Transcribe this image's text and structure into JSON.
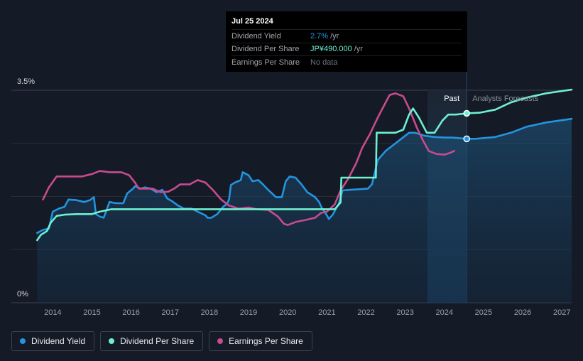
{
  "tooltip": {
    "date": "Jul 25 2024",
    "rows": [
      {
        "label": "Dividend Yield",
        "value": "2.7%",
        "unit": "/yr",
        "color": "#2394df"
      },
      {
        "label": "Dividend Per Share",
        "value": "JP¥490.000",
        "unit": "/yr",
        "color": "#6ff0d2"
      },
      {
        "label": "Earnings Per Share",
        "value": "No data",
        "unit": "",
        "color": "#6b7280"
      }
    ]
  },
  "legend": [
    {
      "label": "Dividend Yield",
      "color": "#2394df"
    },
    {
      "label": "Dividend Per Share",
      "color": "#6ff0d2"
    },
    {
      "label": "Earnings Per Share",
      "color": "#c84b8e"
    }
  ],
  "chart_data": {
    "type": "line",
    "x_range": [
      2013.45,
      2027.25
    ],
    "ylim": [
      0,
      3.5
    ],
    "y_ticks": [
      "3.5%",
      "0%"
    ],
    "x_ticks": [
      "2014",
      "2015",
      "2016",
      "2017",
      "2018",
      "2019",
      "2020",
      "2021",
      "2022",
      "2023",
      "2024",
      "2025",
      "2026",
      "2027"
    ],
    "past_label": "Past",
    "forecast_label": "Analysts Forecasts",
    "past_start": 2023.57,
    "forecast_start": 2024.57,
    "grid": true,
    "series": [
      {
        "name": "Dividend Yield",
        "color": "#2394df",
        "area": true,
        "points": [
          [
            2013.6,
            1.15
          ],
          [
            2013.75,
            1.2
          ],
          [
            2013.9,
            1.22
          ],
          [
            2014.0,
            1.5
          ],
          [
            2014.15,
            1.55
          ],
          [
            2014.3,
            1.58
          ],
          [
            2014.4,
            1.7
          ],
          [
            2014.6,
            1.69
          ],
          [
            2014.8,
            1.66
          ],
          [
            2014.95,
            1.69
          ],
          [
            2015.05,
            1.74
          ],
          [
            2015.1,
            1.46
          ],
          [
            2015.2,
            1.42
          ],
          [
            2015.3,
            1.4
          ],
          [
            2015.45,
            1.66
          ],
          [
            2015.6,
            1.64
          ],
          [
            2015.8,
            1.64
          ],
          [
            2015.9,
            1.8
          ],
          [
            2016.05,
            1.88
          ],
          [
            2016.1,
            1.92
          ],
          [
            2016.25,
            1.88
          ],
          [
            2016.35,
            1.9
          ],
          [
            2016.5,
            1.88
          ],
          [
            2016.65,
            1.82
          ],
          [
            2016.8,
            1.86
          ],
          [
            2016.92,
            1.72
          ],
          [
            2017.05,
            1.67
          ],
          [
            2017.2,
            1.6
          ],
          [
            2017.35,
            1.55
          ],
          [
            2017.55,
            1.55
          ],
          [
            2017.7,
            1.5
          ],
          [
            2017.9,
            1.44
          ],
          [
            2017.95,
            1.4
          ],
          [
            2018.05,
            1.4
          ],
          [
            2018.2,
            1.46
          ],
          [
            2018.35,
            1.58
          ],
          [
            2018.45,
            1.63
          ],
          [
            2018.5,
            1.7
          ],
          [
            2018.55,
            1.94
          ],
          [
            2018.65,
            1.98
          ],
          [
            2018.8,
            2.02
          ],
          [
            2018.85,
            2.15
          ],
          [
            2019.0,
            2.1
          ],
          [
            2019.1,
            2.0
          ],
          [
            2019.25,
            2.02
          ],
          [
            2019.35,
            1.96
          ],
          [
            2019.5,
            1.86
          ],
          [
            2019.7,
            1.74
          ],
          [
            2019.85,
            1.74
          ],
          [
            2019.95,
            2.0
          ],
          [
            2020.05,
            2.08
          ],
          [
            2020.2,
            2.06
          ],
          [
            2020.35,
            1.95
          ],
          [
            2020.5,
            1.82
          ],
          [
            2020.7,
            1.74
          ],
          [
            2020.8,
            1.66
          ],
          [
            2020.87,
            1.56
          ],
          [
            2020.92,
            1.52
          ],
          [
            2021.0,
            1.44
          ],
          [
            2021.05,
            1.38
          ],
          [
            2021.15,
            1.45
          ],
          [
            2021.3,
            1.63
          ],
          [
            2021.4,
            1.85
          ],
          [
            2021.6,
            1.86
          ],
          [
            2021.85,
            1.87
          ],
          [
            2022.05,
            1.88
          ],
          [
            2022.15,
            1.95
          ],
          [
            2022.3,
            2.35
          ],
          [
            2022.5,
            2.5
          ],
          [
            2022.7,
            2.6
          ],
          [
            2022.9,
            2.7
          ],
          [
            2023.1,
            2.8
          ],
          [
            2023.25,
            2.8
          ],
          [
            2023.5,
            2.75
          ],
          [
            2023.75,
            2.73
          ],
          [
            2024.0,
            2.72
          ],
          [
            2024.2,
            2.72
          ],
          [
            2024.57,
            2.7
          ],
          [
            2024.8,
            2.7
          ],
          [
            2025.3,
            2.73
          ],
          [
            2025.7,
            2.8
          ],
          [
            2026.1,
            2.9
          ],
          [
            2026.6,
            2.97
          ],
          [
            2027.25,
            3.03
          ]
        ]
      },
      {
        "name": "Dividend Per Share",
        "color": "#6ff0d2",
        "area": false,
        "points": [
          [
            2013.6,
            1.03
          ],
          [
            2013.7,
            1.12
          ],
          [
            2013.85,
            1.18
          ],
          [
            2013.95,
            1.32
          ],
          [
            2014.1,
            1.43
          ],
          [
            2014.3,
            1.45
          ],
          [
            2014.6,
            1.46
          ],
          [
            2015.0,
            1.46
          ],
          [
            2015.2,
            1.5
          ],
          [
            2015.5,
            1.54
          ],
          [
            2016.0,
            1.54
          ],
          [
            2016.5,
            1.54
          ],
          [
            2017.0,
            1.54
          ],
          [
            2017.5,
            1.54
          ],
          [
            2018.0,
            1.54
          ],
          [
            2018.5,
            1.54
          ],
          [
            2019.0,
            1.54
          ],
          [
            2019.5,
            1.54
          ],
          [
            2020.0,
            1.54
          ],
          [
            2020.5,
            1.54
          ],
          [
            2021.0,
            1.54
          ],
          [
            2021.2,
            1.54
          ],
          [
            2021.35,
            1.65
          ],
          [
            2021.37,
            2.06
          ],
          [
            2021.6,
            2.06
          ],
          [
            2022.1,
            2.06
          ],
          [
            2022.25,
            2.06
          ],
          [
            2022.27,
            2.8
          ],
          [
            2022.5,
            2.8
          ],
          [
            2022.75,
            2.8
          ],
          [
            2022.95,
            2.85
          ],
          [
            2023.1,
            3.1
          ],
          [
            2023.2,
            3.2
          ],
          [
            2023.35,
            3.05
          ],
          [
            2023.55,
            2.8
          ],
          [
            2023.75,
            2.8
          ],
          [
            2023.95,
            3.0
          ],
          [
            2024.1,
            3.1
          ],
          [
            2024.3,
            3.1
          ],
          [
            2024.57,
            3.12
          ],
          [
            2024.9,
            3.13
          ],
          [
            2025.3,
            3.18
          ],
          [
            2025.7,
            3.3
          ],
          [
            2026.1,
            3.38
          ],
          [
            2026.6,
            3.45
          ],
          [
            2027.25,
            3.51
          ]
        ]
      },
      {
        "name": "Earnings Per Share",
        "color": "#c84b8e",
        "area": false,
        "points": [
          [
            2013.75,
            1.7
          ],
          [
            2013.9,
            1.9
          ],
          [
            2014.1,
            2.08
          ],
          [
            2014.4,
            2.08
          ],
          [
            2014.75,
            2.08
          ],
          [
            2015.0,
            2.12
          ],
          [
            2015.2,
            2.17
          ],
          [
            2015.45,
            2.15
          ],
          [
            2015.75,
            2.15
          ],
          [
            2015.95,
            2.1
          ],
          [
            2016.1,
            1.98
          ],
          [
            2016.2,
            1.88
          ],
          [
            2016.55,
            1.88
          ],
          [
            2016.75,
            1.82
          ],
          [
            2016.95,
            1.83
          ],
          [
            2017.1,
            1.88
          ],
          [
            2017.25,
            1.95
          ],
          [
            2017.5,
            1.95
          ],
          [
            2017.7,
            2.02
          ],
          [
            2017.9,
            1.98
          ],
          [
            2018.1,
            1.85
          ],
          [
            2018.3,
            1.7
          ],
          [
            2018.5,
            1.6
          ],
          [
            2018.75,
            1.55
          ],
          [
            2019.0,
            1.57
          ],
          [
            2019.2,
            1.54
          ],
          [
            2019.5,
            1.53
          ],
          [
            2019.75,
            1.42
          ],
          [
            2019.9,
            1.3
          ],
          [
            2020.0,
            1.28
          ],
          [
            2020.2,
            1.33
          ],
          [
            2020.5,
            1.37
          ],
          [
            2020.7,
            1.4
          ],
          [
            2020.85,
            1.48
          ],
          [
            2021.0,
            1.5
          ],
          [
            2021.2,
            1.62
          ],
          [
            2021.35,
            1.85
          ],
          [
            2021.55,
            2.05
          ],
          [
            2021.75,
            2.3
          ],
          [
            2021.9,
            2.55
          ],
          [
            2022.1,
            2.78
          ],
          [
            2022.3,
            3.05
          ],
          [
            2022.5,
            3.3
          ],
          [
            2022.6,
            3.42
          ],
          [
            2022.75,
            3.45
          ],
          [
            2022.95,
            3.4
          ],
          [
            2023.1,
            3.2
          ],
          [
            2023.3,
            2.88
          ],
          [
            2023.45,
            2.68
          ],
          [
            2023.6,
            2.5
          ],
          [
            2023.8,
            2.45
          ],
          [
            2024.0,
            2.44
          ],
          [
            2024.15,
            2.47
          ],
          [
            2024.25,
            2.5
          ]
        ]
      }
    ],
    "markers": [
      {
        "series": "Dividend Yield",
        "x": 2024.57,
        "y": 2.7
      },
      {
        "series": "Dividend Per Share",
        "x": 2024.57,
        "y": 3.12
      }
    ]
  }
}
